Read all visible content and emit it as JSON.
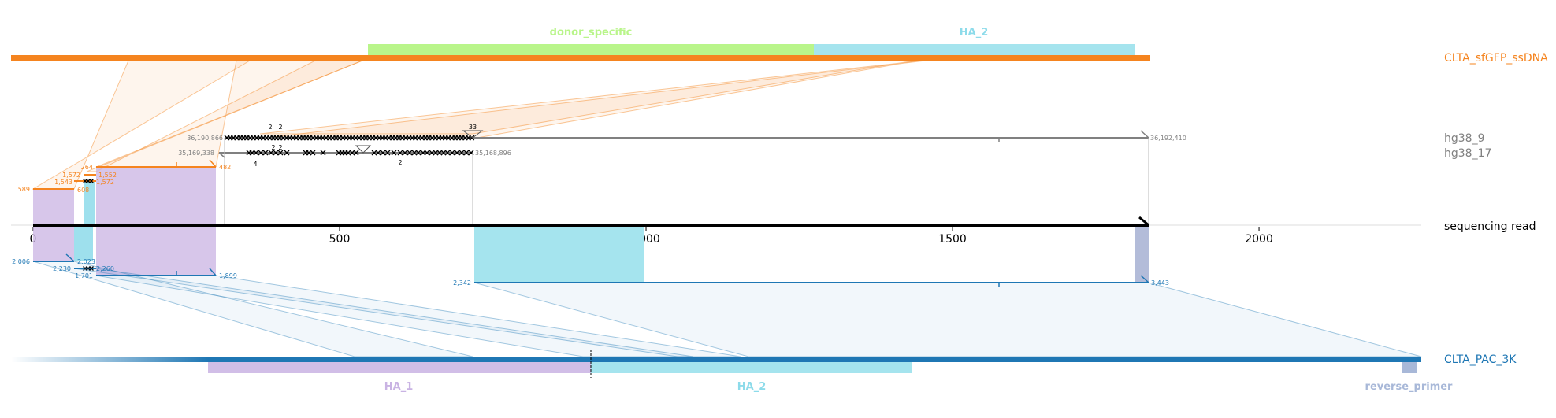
{
  "colors": {
    "orange": "#f5841f",
    "blue": "#1f77b4",
    "gray": "#808080",
    "black": "#000000",
    "ha1": "#c9b3e3",
    "ha2": "#8ddbea",
    "donor_specific": "#b9f58a",
    "reverse_primer": "#a8b8d8",
    "dark_purple": "#9aa6cc"
  },
  "references": {
    "donor": "CLTA_sfGFP_ssDNA",
    "hg38_9": "hg38_9",
    "hg38_17": "hg38_17",
    "read": "sequencing read",
    "target": "CLTA_PAC_3K"
  },
  "features": {
    "donor_specific": "donor_specific",
    "ha2_top": "HA_2",
    "ha1_bottom": "HA_1",
    "ha2_bottom": "HA_2",
    "reverse_primer": "reverse_primer"
  },
  "read_axis": {
    "ticks": [
      "0",
      "500",
      "1000",
      "1500",
      "2000"
    ],
    "tick_values": [
      0,
      500,
      1000,
      1500,
      2000
    ],
    "length": 1820
  },
  "coordinates": {
    "hg38_9_start": "36,190,866",
    "hg38_9_end": "36,192,410",
    "hg38_17_start": "35,169,338",
    "hg38_17_end": "35,168,896",
    "orange_589": "589",
    "orange_1543": "1,543",
    "orange_1572a": "1,572",
    "orange_264": "264",
    "orange_1552": "1,552",
    "orange_1572b": "1,572",
    "orange_608": "608",
    "orange_482": "482",
    "blue_2006": "2,006",
    "blue_2023": "2,023",
    "blue_2230": "2,230",
    "blue_2260": "2,260",
    "blue_1701": "1,701",
    "blue_1899": "1,899",
    "blue_2342": "2,342",
    "blue_3443": "3,443"
  },
  "markers": {
    "hg9_count_a": "2",
    "hg9_count_b": "2",
    "hg9_count_c": "33",
    "hg17_count_a": "4",
    "hg17_count_b": "2",
    "hg17_count_c": "2",
    "hg17_count_d": "2"
  }
}
